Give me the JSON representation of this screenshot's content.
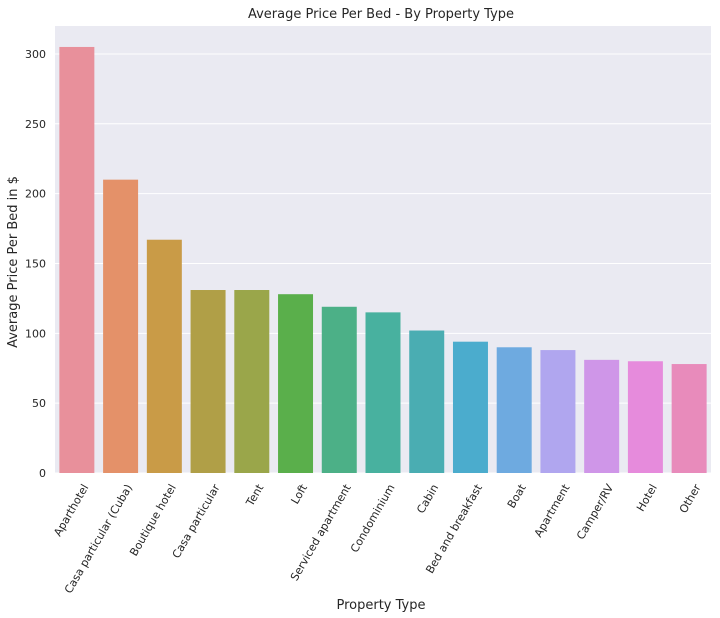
{
  "chart_data": {
    "type": "bar",
    "title": "Average Price Per Bed - By Property Type",
    "xlabel": "Property Type",
    "ylabel": "Average Price Per Bed in $",
    "ylim": [
      0,
      320
    ],
    "yticks": [
      0,
      50,
      100,
      150,
      200,
      250,
      300
    ],
    "grid": true,
    "categories": [
      "Aparthotel",
      "Casa particular (Cuba)",
      "Boutique hotel",
      "Casa particular",
      "Tent",
      "Loft",
      "Serviced apartment",
      "Condominium",
      "Cabin",
      "Bed and breakfast",
      "Boat",
      "Apartment",
      "Camper/RV",
      "Hotel",
      "Other"
    ],
    "values": [
      305,
      210,
      167,
      131,
      131,
      128,
      119,
      115,
      102,
      94,
      90,
      88,
      81,
      80,
      78
    ],
    "colors": [
      "#e8909b",
      "#e49169",
      "#c99b47",
      "#b09f47",
      "#9aa64a",
      "#5aaf4b",
      "#4cb087",
      "#48b19f",
      "#4aadb2",
      "#4baccd",
      "#6eaae0",
      "#b0a6ef",
      "#cf96e8",
      "#e68bdc",
      "#e88bbb"
    ],
    "background": "#eaeaf2"
  }
}
